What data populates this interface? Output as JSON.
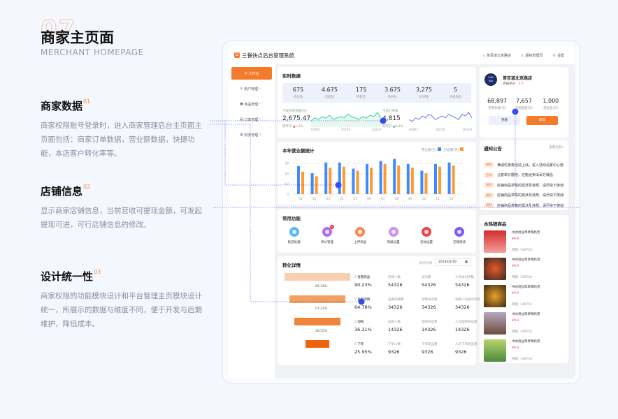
{
  "intro": {
    "number": "07",
    "title": "商家主页面",
    "subtitle": "MERCHANT HOMEPAGE"
  },
  "sections": [
    {
      "title": "商家数据",
      "num": "01",
      "desc": "商家权限账号登录时，进入商家管理后台主页面主页面包括：商家订单数据，营业额数据，快捷功能，本店客户转化率等。"
    },
    {
      "title": "店铺信息",
      "num": "02",
      "desc": "显示商家店铺信息，当前营收可提现金额，可发起提现可进，可行店铺信息的修改。"
    },
    {
      "title": "设计统一性",
      "num": "03",
      "desc": "商家权限的功能模块设计和平台管理主页模块设计统一，所展示的数据与维度不同，便于开发与后期维护，降低成本。"
    }
  ],
  "app": {
    "title": "三餐快点后台管理系统",
    "top_links": [
      "茶百道北京路店",
      "超级管理员",
      "设置"
    ],
    "sidebar": [
      "工作台",
      "用户管理",
      "商品管理",
      "订单管理",
      "财务管理"
    ],
    "realtime": {
      "title": "实时数据",
      "stats": [
        {
          "v": "675",
          "l": "待付款"
        },
        {
          "v": "4,675",
          "l": "已配送"
        },
        {
          "v": "175",
          "l": "待售后"
        },
        {
          "v": "3,675",
          "l": "待评价"
        },
        {
          "v": "3,275",
          "l": "好评数"
        },
        {
          "v": "5",
          "l": "违规商品"
        }
      ],
      "amount": {
        "label": "今日交易金额(元)",
        "value": "2,675.47",
        "compare": "较昨日",
        "change": "1.3%",
        "dates": [
          "02/01",
          "02/10",
          "02/19"
        ]
      },
      "orders": {
        "label": "今日订单数",
        "value": "4,815",
        "compare": "较昨日",
        "change": "0.8%",
        "dates": [
          "02/01",
          "02/10",
          "02/19"
        ]
      }
    },
    "store": {
      "name": "茶百道北京路店",
      "rating_label": "店铺评分：",
      "rating": "4.6",
      "logo_text": "CHA BAI DAO",
      "stats": [
        {
          "v": "68,897",
          "l": "可用余额(元)"
        },
        {
          "v": "7,657",
          "l": "冻结金额(元)"
        },
        {
          "v": "1,000",
          "l": "保证金(元)"
        }
      ],
      "recharge": "充值",
      "withdraw": "提现"
    },
    "notices": {
      "title": "通知公告",
      "more": "查看全部>",
      "items": [
        {
          "tag": "通知",
          "text": "满减优惠券活动上线，进入活动设置中心部..."
        },
        {
          "tag": "活动",
          "text": "让客单价翻倍，还能远卖出百万爆品"
        },
        {
          "tag": "通知",
          "text": "店铺商品草莓的需涉及违规，请尽快下架处理"
        },
        {
          "tag": "通知",
          "text": "店铺商品草莓的需涉及违规，请尽快下架处理"
        },
        {
          "tag": "通知",
          "text": "店铺商品草莓的需涉及违规，请尽快下架处理"
        }
      ]
    },
    "functions": {
      "title": "常用功能",
      "items": [
        "售后处理",
        "评价管理",
        "上传商品",
        "等级设置",
        "活动设置",
        "店铺装修"
      ],
      "badge": "5"
    },
    "conversion": {
      "title": "转化详情",
      "date_label": "统计时间",
      "date": "2023/02/19",
      "rates": [
        "83.34%",
        "57.21%",
        "28.52%"
      ],
      "steps": [
        {
          "n": "1",
          "name": "查看商品",
          "pct": "90.23%",
          "cols": [
            [
              "浏览人数",
              "54326"
            ],
            [
              "访问量",
              "54326"
            ],
            [
              "人均访问次数",
              "54326"
            ]
          ]
        },
        {
          "n": "2",
          "name": "查看详情",
          "pct": "64.78%",
          "cols": [
            [
              "查看详情数",
              "34326"
            ],
            [
              "详情访问量",
              "34326"
            ],
            [
              "详情人均访问次数",
              "34326"
            ]
          ]
        },
        {
          "n": "3",
          "name": "加购",
          "pct": "36.31%",
          "cols": [
            [
              "加购人数",
              "14326"
            ],
            [
              "加购商品量",
              "14326"
            ],
            [
              "人均加购商品量",
              "14326"
            ]
          ]
        },
        {
          "n": "4",
          "name": "下单",
          "pct": "25.95%",
          "cols": [
            [
              "下单人数",
              "9326"
            ],
            [
              "下单商品量",
              "9326"
            ],
            [
              "人均下单商品量",
              "9326"
            ]
          ]
        }
      ]
    },
    "hot": {
      "title": "本热销商品",
      "items": [
        {
          "name": "书亦烧仙草草莓奶昔",
          "price": "¥9.9",
          "sales_label": "销量:",
          "sales": "146754"
        },
        {
          "name": "书亦烧仙草草莓奶昔",
          "price": "¥9.9",
          "sales_label": "销量:",
          "sales": "146754"
        },
        {
          "name": "书亦烧仙草草莓奶昔",
          "price": "¥9.9",
          "sales_label": "销量:",
          "sales": "146754"
        },
        {
          "name": "书亦烧仙草草莓奶昔",
          "price": "¥9.9",
          "sales_label": "销量:",
          "sales": "146754"
        },
        {
          "name": "书亦烧仙草草莓奶昔",
          "price": "¥9.9",
          "sales_label": "销量:",
          "sales": "146754"
        }
      ]
    }
  },
  "colors": {
    "accent": "#f47a2c",
    "blue": "#3d8bff",
    "orange": "#ff9a2e",
    "annotation": "#2f50f5"
  },
  "chart_data": [
    {
      "type": "bar",
      "title": "本年营业额统计",
      "categories": [
        "01",
        "02",
        "03",
        "03",
        "05",
        "06",
        "07",
        "08",
        "09",
        "10",
        "11",
        "12"
      ],
      "series": [
        {
          "name": "营业额(元)",
          "values": [
            27.5,
            20.5,
            31,
            31,
            25,
            29.5,
            32.5,
            34.5,
            29.5,
            23,
            29.5,
            31
          ]
        },
        {
          "name": "已结算(元)",
          "values": [
            22,
            17.5,
            26,
            27,
            23,
            26,
            29.5,
            28,
            26,
            20.5,
            27,
            28
          ]
        }
      ],
      "yticks": [
        0,
        10,
        20,
        30
      ],
      "ylim": [
        0,
        37
      ],
      "legend": "top-right"
    },
    {
      "type": "area",
      "values": [
        3,
        5,
        4,
        6,
        5,
        7,
        4,
        5,
        6,
        5,
        8,
        6,
        5,
        4,
        6,
        5,
        7,
        6,
        9,
        5
      ]
    },
    {
      "type": "line",
      "values": [
        3,
        2,
        4,
        3,
        5,
        4,
        6,
        5,
        3,
        4,
        5,
        4,
        6,
        5,
        4,
        3,
        6,
        5,
        7,
        4
      ]
    }
  ]
}
